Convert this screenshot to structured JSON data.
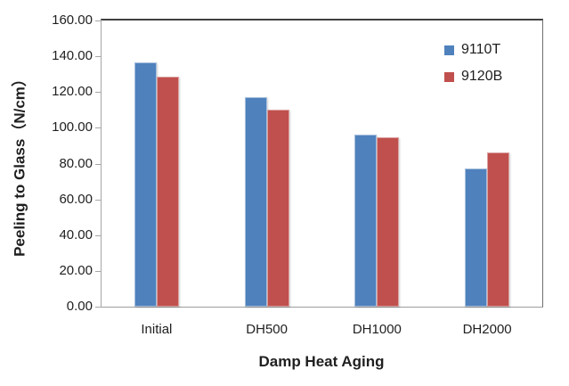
{
  "chart_data": {
    "type": "bar",
    "title": "",
    "categories": [
      "Initial",
      "DH500",
      "DH1000",
      "DH2000"
    ],
    "series": [
      {
        "name": "9110T",
        "color": "#4f81bd",
        "border_color": "#a7c0de",
        "values": [
          136.5,
          117,
          96,
          77.5
        ]
      },
      {
        "name": "9120B",
        "color": "#c0504d",
        "border_color": "#dba3a1",
        "values": [
          128.5,
          110,
          94.5,
          86
        ]
      }
    ],
    "xlabel": "Damp Heat Aging",
    "ylabel": "Peeling to Glass（N/cm）",
    "ylim": [
      0,
      160
    ],
    "ytick_step": 20,
    "ytick_labels": [
      "0.00",
      "20.00",
      "40.00",
      "60.00",
      "80.00",
      "100.00",
      "120.00",
      "140.00",
      "160.00"
    ],
    "grid": false,
    "legend_position": "top-right-inside",
    "axis_color": "#a6a6a6",
    "text_color": "#1f1f1f"
  }
}
